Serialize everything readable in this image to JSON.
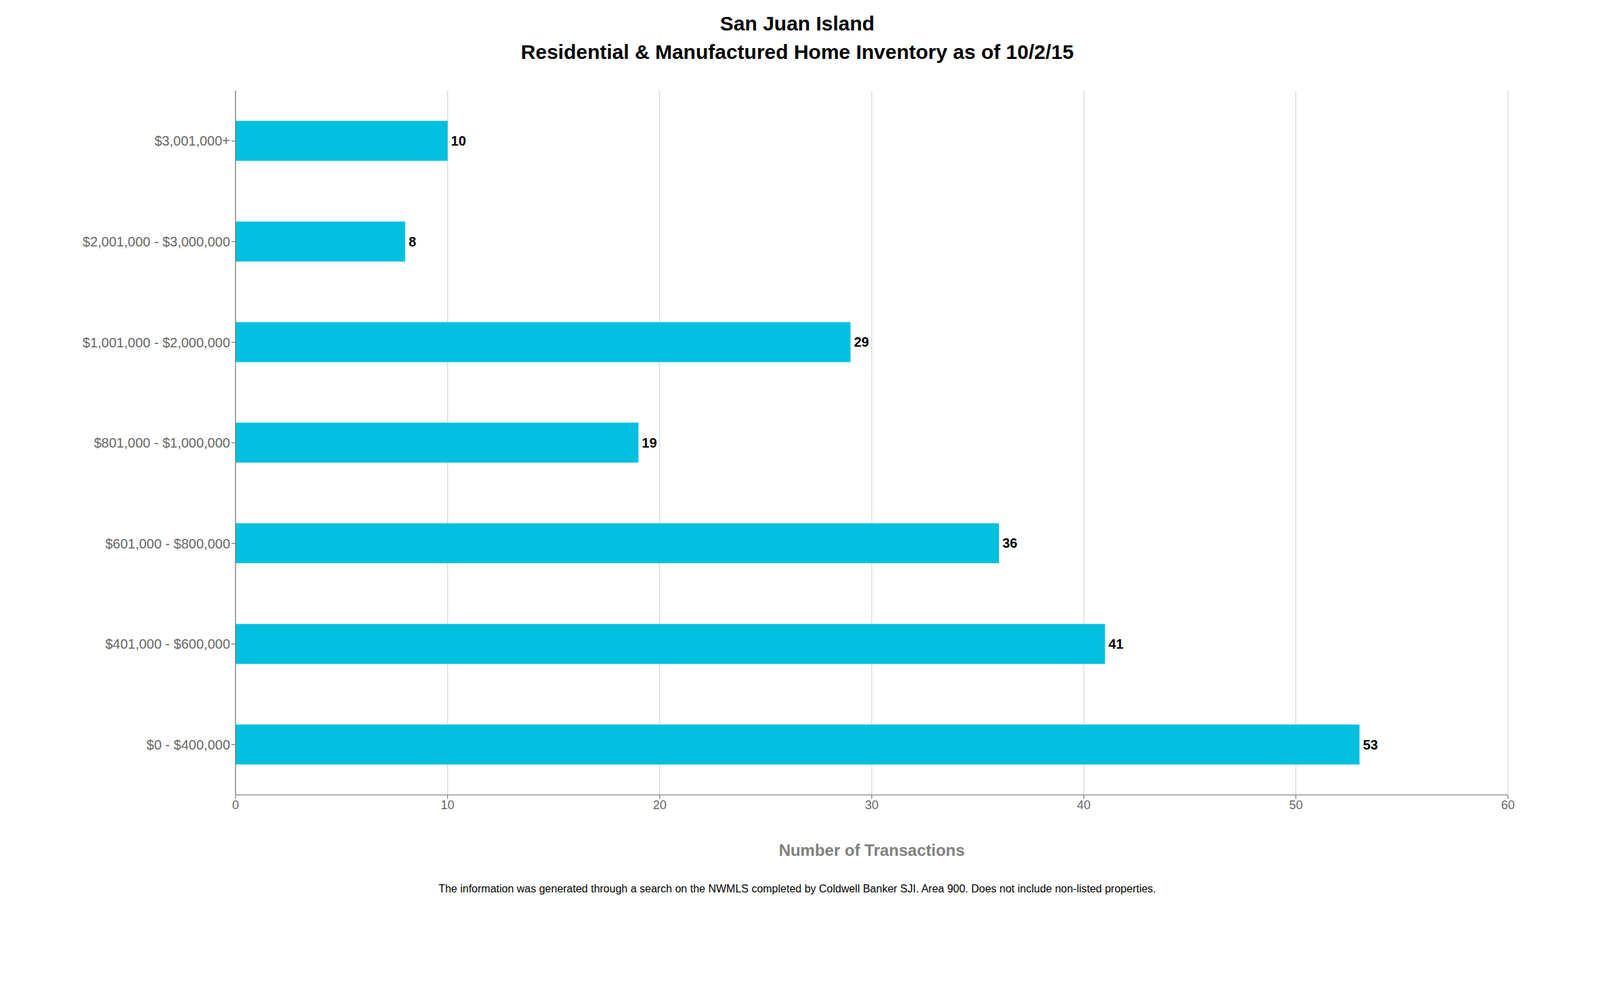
{
  "chart_data": {
    "type": "bar",
    "orientation": "horizontal",
    "title": "San Juan Island",
    "subtitle": "Residential & Manufactured Home Inventory as of 10/2/15",
    "categories": [
      "$0 - $400,000",
      "$401,000 - $600,000",
      "$601,000 - $800,000",
      "$801,000 - $1,000,000",
      "$1,001,000 - $2,000,000",
      "$2,001,000 - $3,000,000",
      "$3,001,000+"
    ],
    "values": [
      53,
      41,
      36,
      19,
      29,
      8,
      10
    ],
    "color": "#00BFDF",
    "xlabel": "Number of Transactions",
    "xlim": [
      0,
      60
    ],
    "xticks": [
      0,
      10,
      20,
      30,
      40,
      50,
      60
    ],
    "grid": true,
    "data_labels": true,
    "annotations": [
      "The information was generated through a search on the NWMLS completed by Coldwell Banker SJI. Area 900. Does not include non-listed properties."
    ]
  }
}
